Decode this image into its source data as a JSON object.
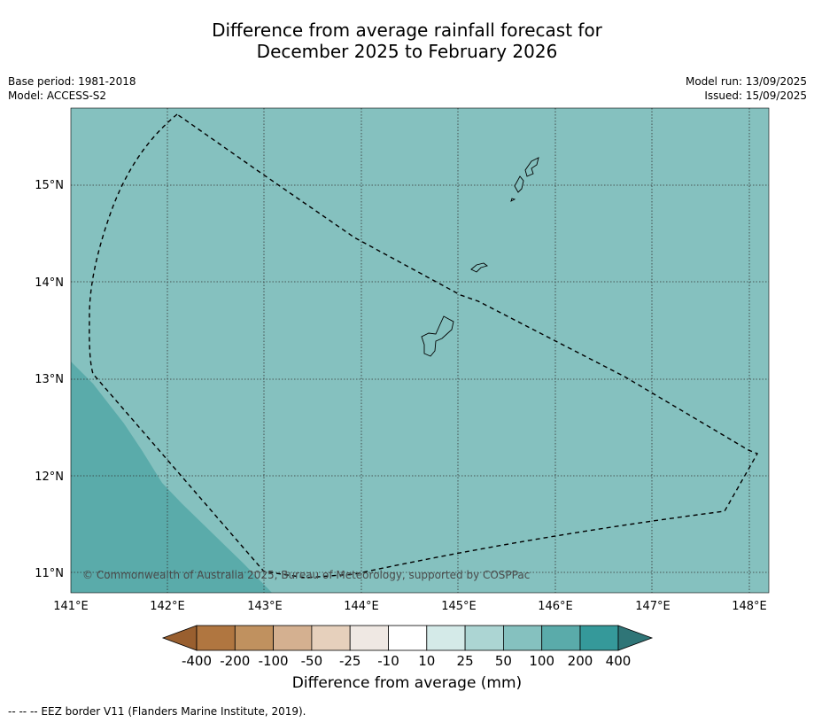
{
  "title": {
    "line1": "Difference from average rainfall forecast for",
    "line2": "December 2025 to February 2026"
  },
  "meta_left": {
    "base_period": "Base period: 1981-2018",
    "model": "Model: ACCESS-S2"
  },
  "meta_right": {
    "model_run": "Model run: 13/09/2025",
    "issued": "Issued: 15/09/2025"
  },
  "map": {
    "lon_labels": [
      "141°E",
      "142°E",
      "143°E",
      "144°E",
      "145°E",
      "146°E",
      "147°E",
      "148°E"
    ],
    "lat_labels": [
      "15°N",
      "14°N",
      "13°N",
      "12°N",
      "11°N"
    ],
    "copyright": "© Commonwealth of Australia 2025, Bureau of Meteorology, supported by COSPPac",
    "colors": {
      "base": "#85c1bf",
      "higher": "#5aabaa"
    }
  },
  "colorbar": {
    "ticks": [
      "-400",
      "-200",
      "-100",
      "-50",
      "-25",
      "-10",
      "10",
      "25",
      "50",
      "100",
      "200",
      "400"
    ],
    "colors": [
      "#995f2f",
      "#b07640",
      "#c0915f",
      "#d4b090",
      "#e6d0bc",
      "#efe8e3",
      "#ffffff",
      "#d4eae8",
      "#acd5d3",
      "#85c1bf",
      "#5aabaa",
      "#35999a",
      "#2f7577"
    ],
    "label": "Difference from average (mm)"
  },
  "footer": "-- -- -- EEZ border V11 (Flanders Marine Institute, 2019)."
}
